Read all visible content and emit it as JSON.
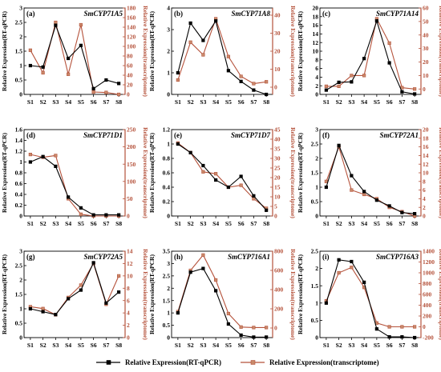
{
  "figure": {
    "y_left_label": "Relative Expression(RT-qPCR)",
    "y_right_label": "Relative Expression(transcriptome)",
    "legend": [
      {
        "label": "Relative Expression(RT-qPCR)",
        "color": "#000000",
        "marker": "square"
      },
      {
        "label": "Relative Expression(transcriptome)",
        "color": "#b5523b",
        "marker": "square"
      }
    ]
  },
  "chart_data": [
    {
      "panel_label": "(a)",
      "title": "SmCYP71A5",
      "type": "line",
      "categories": [
        "S1",
        "S2",
        "S3",
        "S4",
        "S5",
        "S6",
        "S7",
        "S8"
      ],
      "left_ylim": [
        0,
        3.0
      ],
      "left_ticks": [
        0,
        0.5,
        1.0,
        1.5,
        2.0,
        2.5,
        3.0
      ],
      "right_ylim": [
        0,
        180
      ],
      "right_ticks": [
        0,
        20,
        40,
        60,
        80,
        100,
        120,
        140,
        160,
        180
      ],
      "series": [
        {
          "name": "Relative Expression(RT-qPCR)",
          "axis": "left",
          "values": [
            1.0,
            0.95,
            2.4,
            1.25,
            1.7,
            0.2,
            0.5,
            0.38
          ]
        },
        {
          "name": "Relative Expression(transcriptome)",
          "axis": "right",
          "values": [
            92,
            45,
            150,
            42,
            145,
            5,
            4,
            0
          ]
        }
      ]
    },
    {
      "panel_label": "(b)",
      "title": "SmCYP71A8",
      "type": "line",
      "categories": [
        "S1",
        "S2",
        "S3",
        "S4",
        "S5",
        "S6",
        "S7",
        "S8"
      ],
      "left_ylim": [
        0,
        4
      ],
      "left_ticks": [
        0,
        1,
        2,
        3,
        4
      ],
      "right_ylim": [
        -4,
        44
      ],
      "right_ticks": [
        0,
        10,
        20,
        30,
        40
      ],
      "series": [
        {
          "name": "Relative Expression(RT-qPCR)",
          "axis": "left",
          "values": [
            1.0,
            3.3,
            2.5,
            3.4,
            1.1,
            0.6,
            0.2,
            0.0
          ]
        },
        {
          "name": "Relative Expression(transcriptome)",
          "axis": "right",
          "values": [
            4,
            25,
            18,
            38,
            17,
            6,
            2,
            3
          ]
        }
      ]
    },
    {
      "panel_label": "(c)",
      "title": "SmCYP71A14",
      "type": "line",
      "categories": [
        "S1",
        "S2",
        "S3",
        "S4",
        "S5",
        "S6",
        "S7",
        "S8"
      ],
      "left_ylim": [
        0,
        20
      ],
      "left_ticks": [
        0,
        2,
        4,
        6,
        8,
        10,
        12,
        14,
        16,
        18,
        20
      ],
      "right_ylim": [
        -4,
        60
      ],
      "right_ticks": [
        0,
        10,
        20,
        30,
        40,
        50,
        60
      ],
      "series": [
        {
          "name": "Relative Expression(RT-qPCR)",
          "axis": "left",
          "values": [
            1.0,
            2.8,
            2.9,
            8.3,
            17.0,
            7.3,
            0.6,
            0.1
          ]
        },
        {
          "name": "Relative Expression(transcriptome)",
          "axis": "right",
          "values": [
            2,
            2,
            10,
            10,
            52,
            34,
            1,
            0
          ]
        }
      ]
    },
    {
      "panel_label": "(d)",
      "title": "SmCYP71D1",
      "type": "line",
      "categories": [
        "S1",
        "S2",
        "S3",
        "S4",
        "S5",
        "S6",
        "S7",
        "S8"
      ],
      "left_ylim": [
        0,
        1.6
      ],
      "left_ticks": [
        0,
        0.2,
        0.4,
        0.6,
        0.8,
        1.0,
        1.2,
        1.4,
        1.6
      ],
      "right_ylim": [
        0,
        250
      ],
      "right_ticks": [
        0,
        50,
        100,
        150,
        200,
        250
      ],
      "series": [
        {
          "name": "Relative Expression(RT-qPCR)",
          "axis": "left",
          "values": [
            1.0,
            1.1,
            0.92,
            0.35,
            0.15,
            0.02,
            0.02,
            0.02
          ]
        },
        {
          "name": "Relative Expression(transcriptome)",
          "axis": "right",
          "values": [
            178,
            170,
            175,
            50,
            5,
            0,
            0,
            0
          ]
        }
      ]
    },
    {
      "panel_label": "(e)",
      "title": "SmCYP71D7",
      "type": "line",
      "categories": [
        "S1",
        "S2",
        "S3",
        "S4",
        "S5",
        "S6",
        "S7",
        "S8"
      ],
      "left_ylim": [
        0,
        1.2
      ],
      "left_ticks": [
        0,
        0.2,
        0.4,
        0.6,
        0.8,
        1.0,
        1.2
      ],
      "right_ylim": [
        0,
        45
      ],
      "right_ticks": [
        0,
        5,
        10,
        15,
        20,
        25,
        30,
        35,
        40,
        45
      ],
      "series": [
        {
          "name": "Relative Expression(RT-qPCR)",
          "axis": "left",
          "values": [
            1.0,
            0.88,
            0.7,
            0.5,
            0.4,
            0.55,
            0.28,
            0.08
          ]
        },
        {
          "name": "Relative Expression(transcriptome)",
          "axis": "right",
          "values": [
            38,
            33,
            23,
            22,
            15,
            16,
            9,
            4
          ]
        }
      ]
    },
    {
      "panel_label": "(f)",
      "title": "SmCYP72A1",
      "type": "line",
      "categories": [
        "S1",
        "S2",
        "S3",
        "S4",
        "S5",
        "S6",
        "S7",
        "S8"
      ],
      "left_ylim": [
        0,
        3.0
      ],
      "left_ticks": [
        0,
        0.5,
        1.0,
        1.5,
        2.0,
        2.5,
        3.0
      ],
      "right_ylim": [
        0,
        20
      ],
      "right_ticks": [
        0,
        2,
        4,
        6,
        8,
        10,
        12,
        14,
        16,
        18,
        20
      ],
      "series": [
        {
          "name": "Relative Expression(RT-qPCR)",
          "axis": "left",
          "values": [
            1.0,
            2.45,
            1.4,
            0.85,
            0.55,
            0.35,
            0.12,
            0.08
          ]
        },
        {
          "name": "Relative Expression(transcriptome)",
          "axis": "right",
          "values": [
            8,
            16,
            6,
            5,
            4,
            2,
            1,
            0
          ]
        }
      ]
    },
    {
      "panel_label": "(g)",
      "title": "SmCYP72A5",
      "type": "line",
      "categories": [
        "S1",
        "S2",
        "S3",
        "S4",
        "S5",
        "S6",
        "S7",
        "S8"
      ],
      "left_ylim": [
        0,
        3.0
      ],
      "left_ticks": [
        0,
        0.5,
        1.0,
        1.5,
        2.0,
        2.5,
        3.0
      ],
      "right_ylim": [
        0,
        14
      ],
      "right_ticks": [
        0,
        2,
        4,
        6,
        8,
        10,
        12,
        14
      ],
      "series": [
        {
          "name": "Relative Expression(RT-qPCR)",
          "axis": "left",
          "values": [
            1.0,
            0.9,
            0.8,
            1.35,
            1.65,
            2.6,
            1.2,
            1.58
          ]
        },
        {
          "name": "Relative Expression(transcriptome)",
          "axis": "right",
          "values": [
            5,
            4.7,
            3.7,
            6.5,
            8.5,
            12,
            5.4,
            10
          ]
        }
      ]
    },
    {
      "panel_label": "(h)",
      "title": "SmCYP716A1",
      "type": "line",
      "categories": [
        "S1",
        "S2",
        "S3",
        "S4",
        "S5",
        "S6",
        "S7",
        "S8"
      ],
      "left_ylim": [
        0,
        3.5
      ],
      "left_ticks": [
        0,
        0.5,
        1.0,
        1.5,
        2.0,
        2.5,
        3.0,
        3.5
      ],
      "right_ylim": [
        -100,
        800
      ],
      "right_ticks": [
        0,
        200,
        400,
        600,
        800
      ],
      "series": [
        {
          "name": "Relative Expression(RT-qPCR)",
          "axis": "left",
          "values": [
            1.0,
            2.65,
            2.8,
            1.9,
            0.55,
            0.1,
            0.02,
            0.02
          ]
        },
        {
          "name": "Relative Expression(transcriptome)",
          "axis": "right",
          "values": [
            170,
            600,
            760,
            500,
            150,
            10,
            5,
            5
          ]
        }
      ]
    },
    {
      "panel_label": "(i)",
      "title": "SmCYP716A3",
      "type": "line",
      "categories": [
        "S1",
        "S2",
        "S3",
        "S4",
        "S5",
        "S6",
        "S7",
        "S8"
      ],
      "left_ylim": [
        0,
        2.5
      ],
      "left_ticks": [
        0,
        0.5,
        1.0,
        1.5,
        2.0,
        2.5
      ],
      "right_ylim": [
        -200,
        1400
      ],
      "right_ticks": [
        -200,
        0,
        200,
        400,
        600,
        800,
        1000,
        1200,
        1400
      ],
      "series": [
        {
          "name": "Relative Expression(RT-qPCR)",
          "axis": "left",
          "values": [
            1.0,
            2.25,
            2.2,
            1.6,
            0.25,
            0.02,
            0.02,
            0.0
          ]
        },
        {
          "name": "Relative Expression(transcriptome)",
          "axis": "right",
          "values": [
            480,
            1000,
            1100,
            730,
            70,
            0,
            0,
            0
          ]
        }
      ]
    }
  ]
}
